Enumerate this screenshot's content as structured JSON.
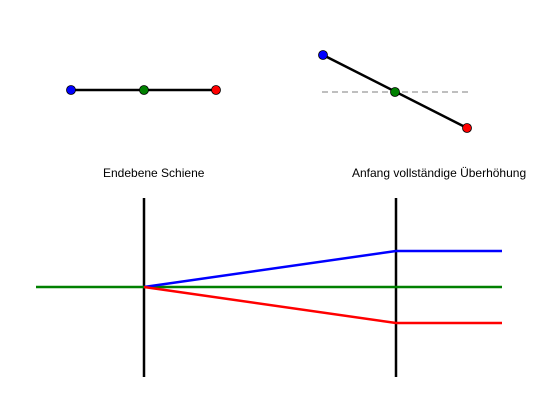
{
  "labels": {
    "left": "Endebene Schiene",
    "right": "Anfang vollständige Überhöhung"
  },
  "colors": {
    "left_rail": "#0000ff",
    "center": "#008000",
    "right_rail": "#ff0000",
    "track": "#000000",
    "reference": "#999999",
    "background": "#ffffff"
  }
}
